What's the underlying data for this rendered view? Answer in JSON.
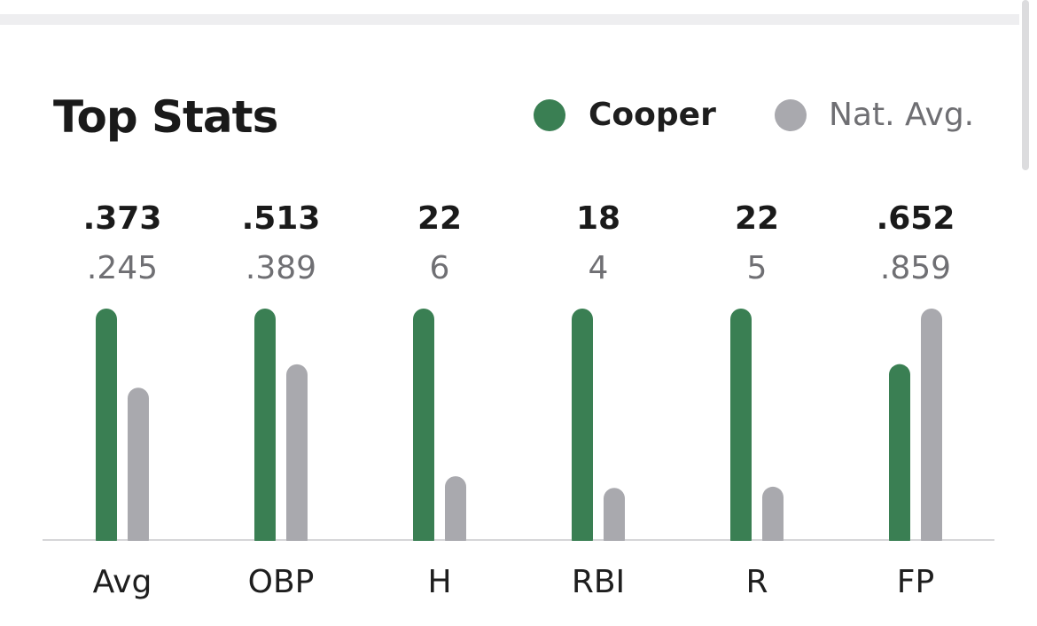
{
  "header": {
    "title": "Top Stats"
  },
  "legend": [
    {
      "label": "Cooper",
      "color": "#3a7f53"
    },
    {
      "label": "Nat. Avg.",
      "color": "#a9a9ae"
    }
  ],
  "chart_data": {
    "type": "bar",
    "title": "Top Stats",
    "normalization": "each stat scaled to the larger of the two values",
    "categories": [
      "Avg",
      "OBP",
      "H",
      "RBI",
      "R",
      "FP"
    ],
    "series": [
      {
        "name": "Cooper",
        "color": "#3a7f53",
        "labels": [
          ".373",
          ".513",
          "22",
          "18",
          "22",
          ".652"
        ],
        "values": [
          0.373,
          0.513,
          22,
          18,
          22,
          0.652
        ]
      },
      {
        "name": "Nat. Avg.",
        "color": "#a9a9ae",
        "labels": [
          ".245",
          ".389",
          "6",
          "4",
          "5",
          ".859"
        ],
        "values": [
          0.245,
          0.389,
          6,
          4,
          5,
          0.859
        ]
      }
    ],
    "grid": false,
    "legend_position": "top-right"
  }
}
